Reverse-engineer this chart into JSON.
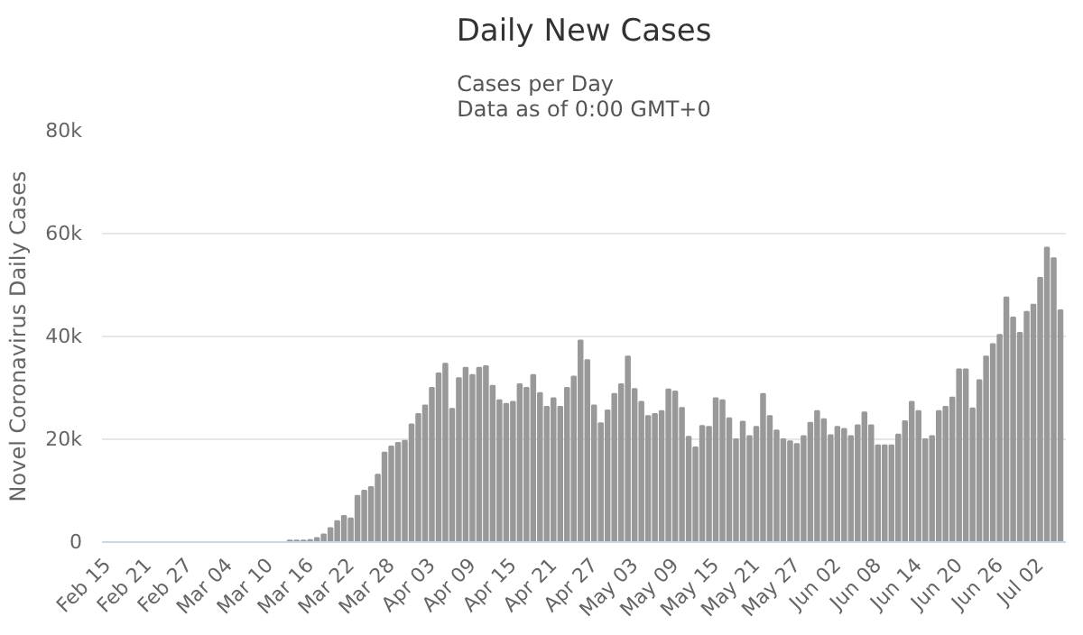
{
  "chart_data": {
    "type": "bar",
    "title": "Daily New Cases",
    "subtitle": "Cases per Day\nData as of 0:00 GMT+0",
    "ylabel": "Novel Coronavirus Daily Cases",
    "categories": [
      "Feb 15",
      null,
      null,
      null,
      null,
      null,
      "Feb 21",
      null,
      null,
      null,
      null,
      null,
      "Feb 27",
      null,
      null,
      null,
      null,
      null,
      "Mar 04",
      null,
      null,
      null,
      null,
      null,
      "Mar 10",
      null,
      null,
      null,
      null,
      null,
      "Mar 16",
      null,
      null,
      null,
      null,
      null,
      "Mar 22",
      null,
      null,
      null,
      null,
      null,
      "Mar 28",
      null,
      null,
      null,
      null,
      null,
      "Apr 03",
      null,
      null,
      null,
      null,
      null,
      "Apr 09",
      null,
      null,
      null,
      null,
      null,
      "Apr 15",
      null,
      null,
      null,
      null,
      null,
      "Apr 21",
      null,
      null,
      null,
      null,
      null,
      "Apr 27",
      null,
      null,
      null,
      null,
      null,
      "May 03",
      null,
      null,
      null,
      null,
      null,
      "May 09",
      null,
      null,
      null,
      null,
      null,
      "May 15",
      null,
      null,
      null,
      null,
      null,
      "May 21",
      null,
      null,
      null,
      null,
      null,
      "May 27",
      null,
      null,
      null,
      null,
      null,
      "Jun 02",
      null,
      null,
      null,
      null,
      null,
      "Jun 08",
      null,
      null,
      null,
      null,
      null,
      "Jun 14",
      null,
      null,
      null,
      null,
      null,
      "Jun 20",
      null,
      null,
      null,
      null,
      null,
      "Jun 26",
      null,
      null,
      null,
      null,
      null,
      "Jul 02",
      null,
      null,
      null
    ],
    "values": [
      0,
      0,
      0,
      0,
      0,
      0,
      0,
      0,
      0,
      0,
      0,
      0,
      0,
      0,
      0,
      0,
      0,
      0,
      0,
      0,
      0,
      0,
      0,
      0,
      0,
      0,
      0,
      300,
      300,
      300,
      400,
      800,
      1500,
      2700,
      4100,
      5100,
      4600,
      9000,
      10000,
      10700,
      13100,
      17400,
      18600,
      19300,
      19700,
      22900,
      24900,
      26600,
      30000,
      32800,
      34700,
      25900,
      31900,
      33900,
      32500,
      33900,
      34200,
      30400,
      27600,
      26900,
      27300,
      30700,
      30000,
      32500,
      29000,
      26300,
      28000,
      26300,
      30000,
      32200,
      39200,
      35400,
      26600,
      23100,
      25600,
      28800,
      30700,
      36100,
      29800,
      27300,
      24500,
      24900,
      25500,
      29700,
      29300,
      26100,
      20500,
      18400,
      22600,
      22400,
      28000,
      27600,
      24100,
      20000,
      23400,
      20600,
      22400,
      28800,
      24500,
      21700,
      20000,
      19600,
      19100,
      20600,
      23200,
      25500,
      23900,
      20800,
      22400,
      22000,
      20600,
      22700,
      25200,
      22700,
      18800,
      18800,
      18800,
      20900,
      23500,
      27300,
      25500,
      20000,
      20600,
      25500,
      26300,
      28100,
      33600,
      33600,
      26000,
      31500,
      36100,
      38500,
      40300,
      47600,
      43700,
      40700,
      44800,
      46200,
      51400,
      57300,
      55200,
      45100
    ],
    "color": "#999999",
    "ylim": [
      0,
      80000
    ],
    "yticks": [
      0,
      {
        "value": 20000,
        "label": "20k"
      },
      {
        "value": 40000,
        "label": "40k"
      },
      {
        "value": 60000,
        "label": "60k"
      },
      {
        "value": 80000,
        "label": "80k"
      }
    ],
    "grid": "y"
  }
}
